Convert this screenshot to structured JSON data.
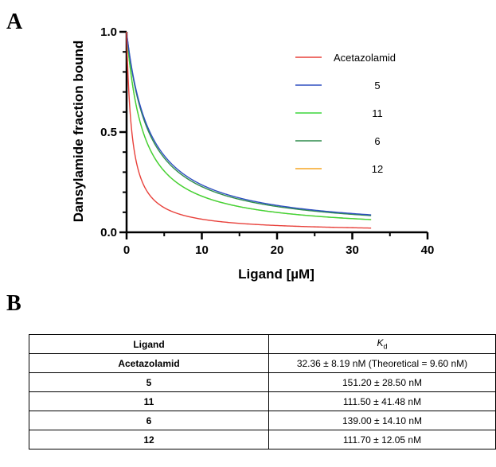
{
  "panels": {
    "a": "A",
    "b": "B"
  },
  "chart_data": {
    "type": "line",
    "xlabel": "Ligand [µM]",
    "ylabel": "Dansylamide fraction bound",
    "xlim": [
      0,
      40
    ],
    "ylim": [
      0,
      1.0
    ],
    "xticks": [
      "0",
      "10",
      "20",
      "30",
      "40"
    ],
    "yticks": [
      "0.0",
      "0.5",
      "1.0"
    ],
    "grid": false,
    "legend_position": "top-right",
    "x_range_plotted": [
      0,
      32.5
    ],
    "series": [
      {
        "name": "Acetazolamid",
        "color": "#e8403a",
        "kd_uM": 0.7
      },
      {
        "name": "5",
        "color": "#2e4fc0",
        "kd_uM": 3.1
      },
      {
        "name": "11",
        "color": "#3bd63b",
        "kd_uM": 2.2
      },
      {
        "name": "6",
        "color": "#2f8c4c",
        "kd_uM": 2.95
      },
      {
        "name": "12",
        "color": "#f5a623",
        "kd_uM": 2.2
      }
    ]
  },
  "table": {
    "headers": {
      "ligand": "Ligand",
      "kd_main": "K",
      "kd_sub": "d"
    },
    "rows": [
      {
        "ligand": "Acetazolamid",
        "kd": "32.36 ± 8.19 nM (Theoretical = 9.60 nM)"
      },
      {
        "ligand": "5",
        "kd": "151.20 ± 28.50 nM"
      },
      {
        "ligand": "11",
        "kd": "111.50 ± 41.48 nM"
      },
      {
        "ligand": "6",
        "kd": "139.00 ± 14.10 nM"
      },
      {
        "ligand": "12",
        "kd": "111.70 ± 12.05 nM"
      }
    ]
  }
}
